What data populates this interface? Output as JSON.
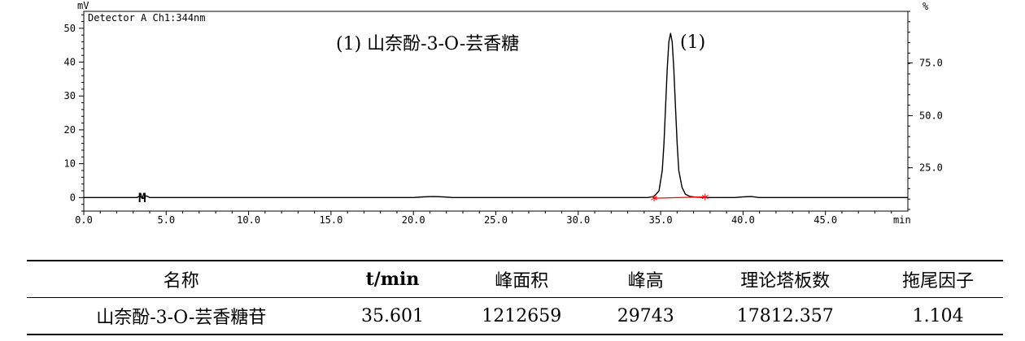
{
  "chart_data": {
    "type": "line",
    "detector_label": "Detector A Ch1:344nm",
    "peak_name_annotation": "(1)  山奈酚-3-O-芸香糖",
    "peak_label": "(1)",
    "marker_label": "M",
    "xlabel": "min",
    "ylabel_left": "mV",
    "ylabel_right": "%",
    "xlim": [
      0,
      50
    ],
    "ylim": [
      -4,
      55
    ],
    "x_ticks": [
      "0.0",
      "5.0",
      "10.0",
      "15.0",
      "20.0",
      "25.0",
      "30.0",
      "35.0",
      "40.0",
      "45.0"
    ],
    "x_tick_values": [
      0,
      5,
      10,
      15,
      20,
      25,
      30,
      35,
      40,
      45
    ],
    "y_ticks_left": [
      "0",
      "10",
      "20",
      "30",
      "40",
      "50"
    ],
    "y_tick_values_left": [
      0,
      10,
      20,
      30,
      40,
      50
    ],
    "y_ticks_right": [
      "25.0",
      "50.0",
      "75.0"
    ],
    "y_tick_values_right_mv": [
      8.8,
      24.2,
      39.8
    ],
    "series": [
      {
        "color": "#000000",
        "x": [
          0,
          3.2,
          3.4,
          3.6,
          3.8,
          4.0,
          4.2,
          10,
          20,
          20.6,
          21.2,
          21.8,
          22.4,
          30,
          34.2,
          34.6,
          34.9,
          35.1,
          35.2,
          35.3,
          35.4,
          35.5,
          35.6,
          35.7,
          35.8,
          35.9,
          36.0,
          36.1,
          36.3,
          36.5,
          36.8,
          37.2,
          38.0,
          39.5,
          40.0,
          40.5,
          41.0,
          50
        ],
        "y": [
          0,
          0,
          0.4,
          -0.3,
          0.5,
          0,
          0,
          0,
          0,
          0.2,
          0.3,
          0.2,
          0,
          0,
          0,
          0.3,
          2.0,
          8.0,
          16.0,
          27.0,
          38.0,
          46.0,
          48.5,
          46.0,
          38.0,
          27.0,
          16.0,
          8.0,
          3.0,
          1.0,
          0.3,
          0.1,
          0,
          0,
          0.2,
          0.3,
          0,
          0
        ]
      }
    ],
    "baseline": {
      "color": "#ff0000",
      "x": [
        34.6,
        37.7
      ],
      "y": [
        -0.2,
        0.2
      ],
      "markers": "*"
    }
  },
  "table": {
    "headers": [
      "名称",
      "t/min",
      "峰面积",
      "峰高",
      "理论塔板数",
      "拖尾因子"
    ],
    "rows": [
      [
        "山奈酚-3-O-芸香糖苷",
        "35.601",
        "1212659",
        "29743",
        "17812.357",
        "1.104"
      ]
    ]
  }
}
